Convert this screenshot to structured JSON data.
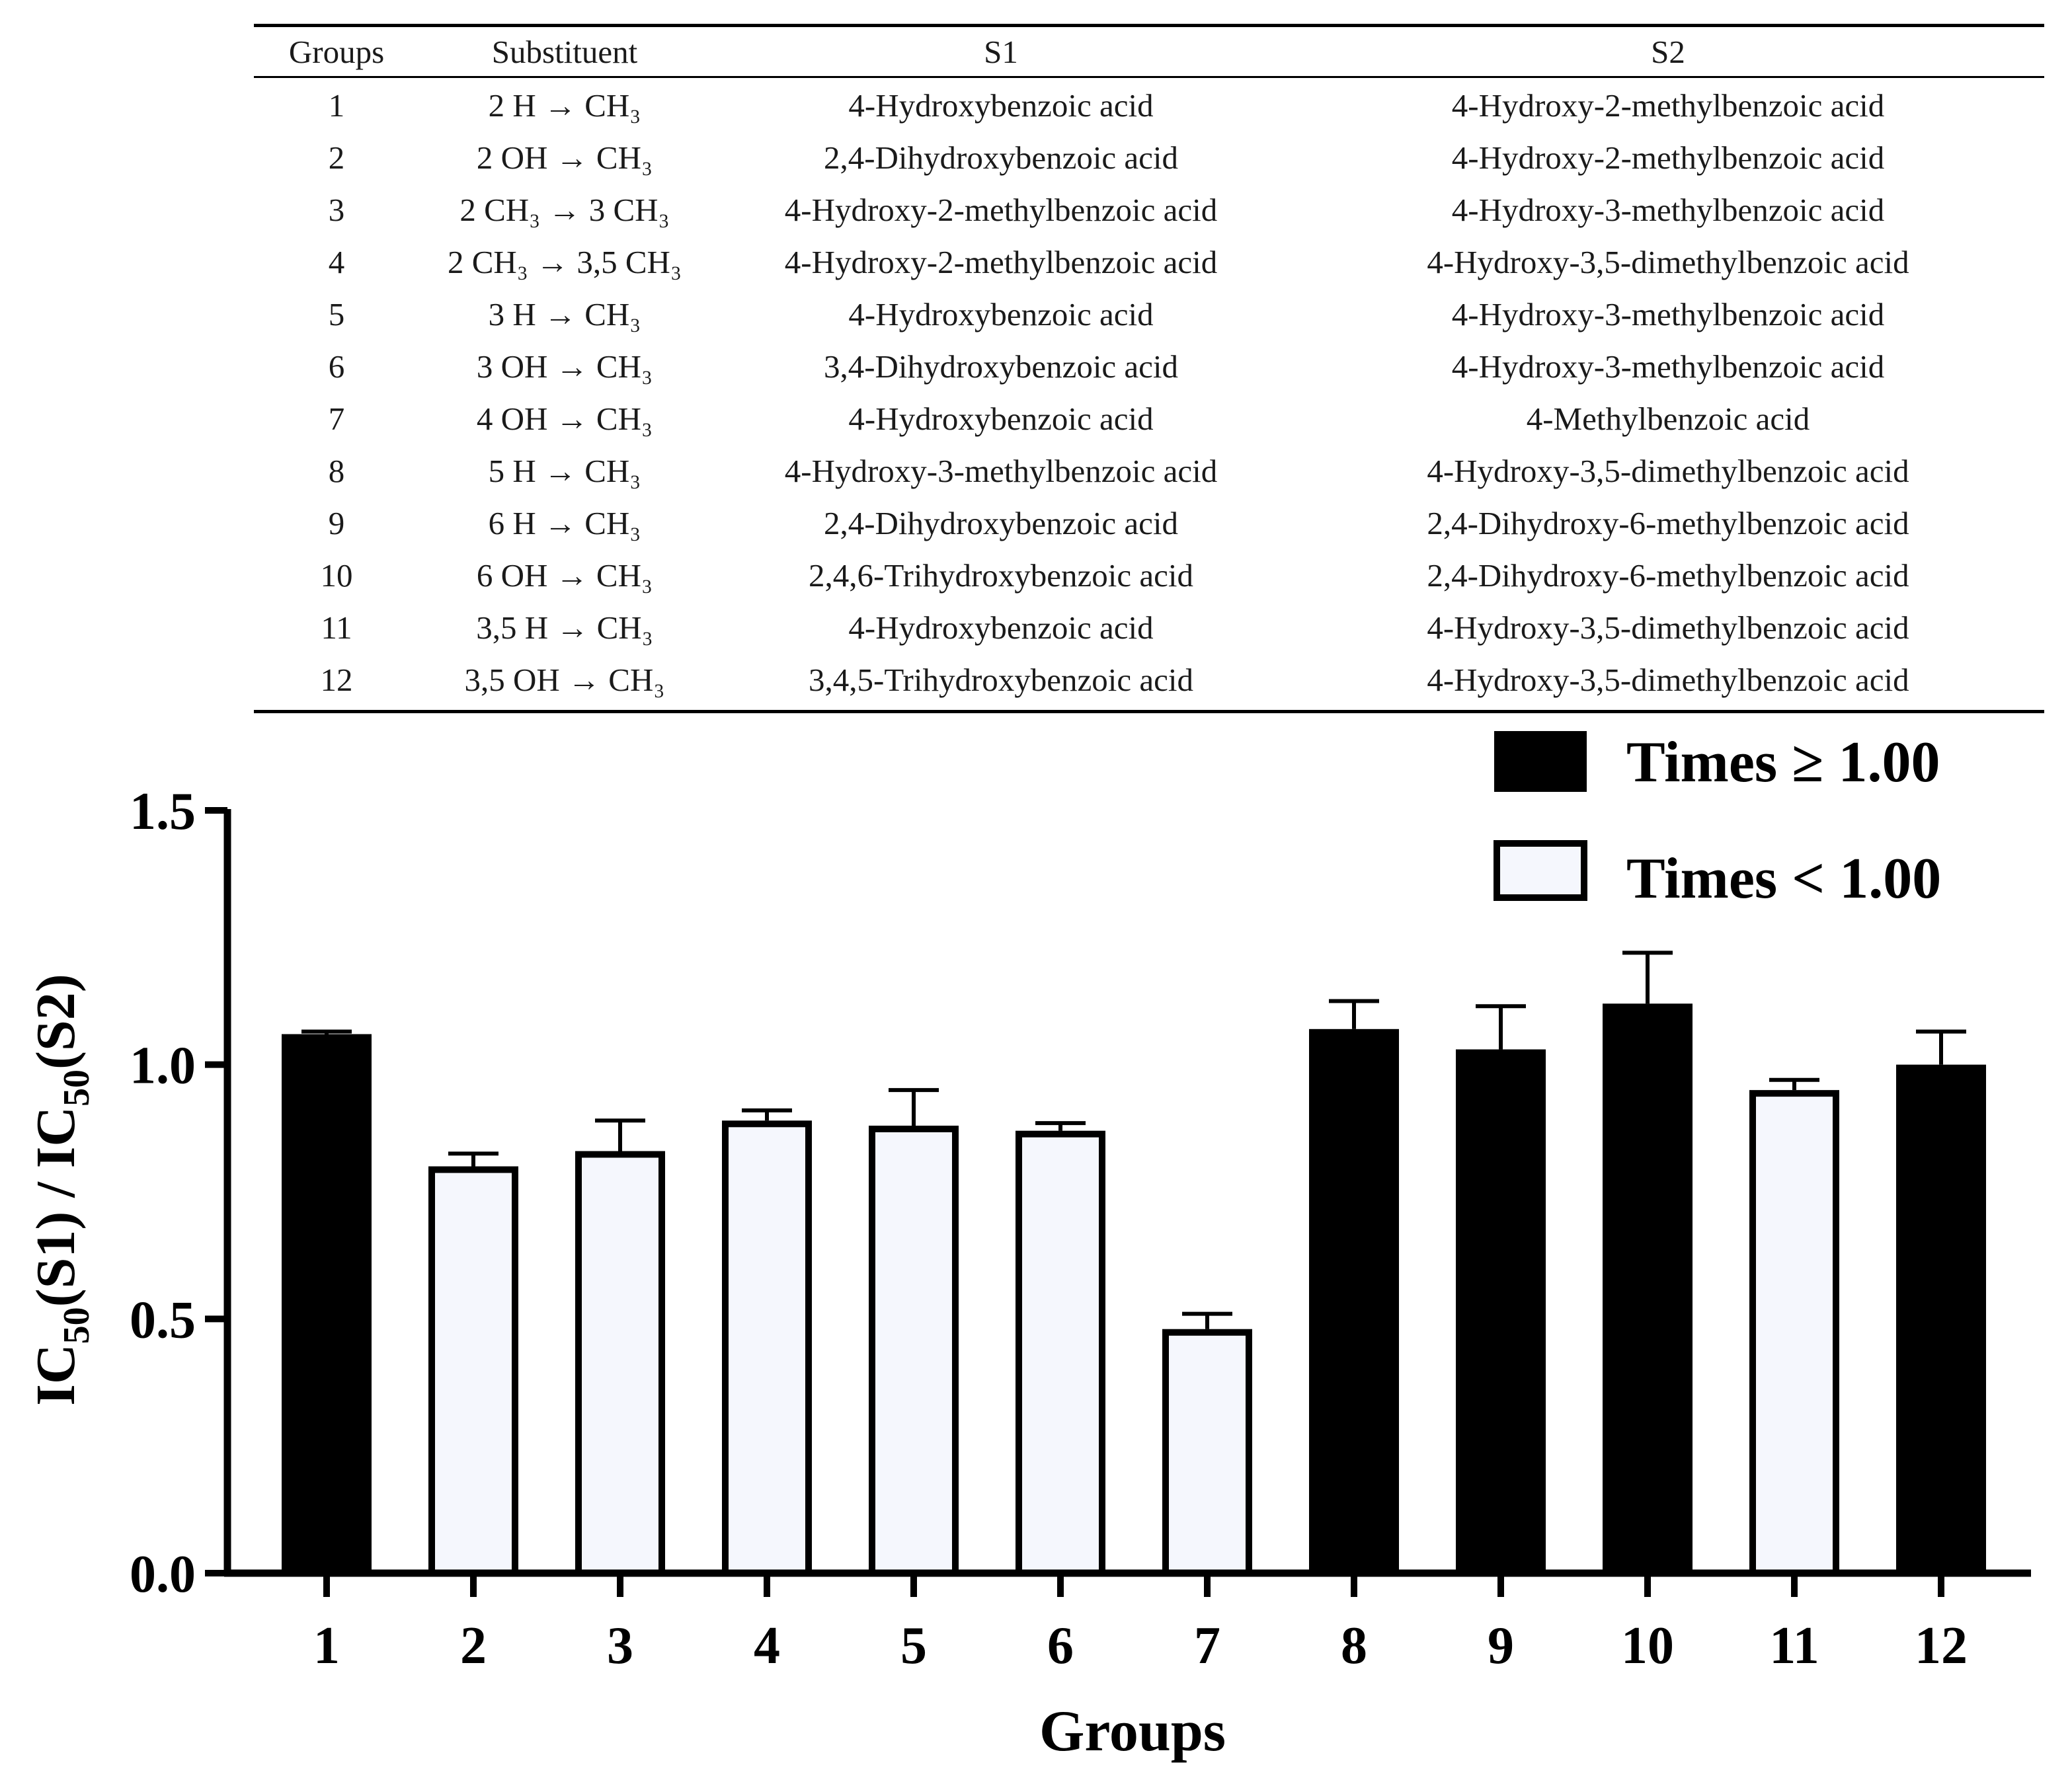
{
  "table": {
    "headers": [
      "Groups",
      "Substituent",
      "S1",
      "S2"
    ],
    "rows": [
      {
        "group": "1",
        "substituent": "2 H → CH₃",
        "s1": "4-Hydroxybenzoic acid",
        "s2": "4-Hydroxy-2-methylbenzoic acid"
      },
      {
        "group": "2",
        "substituent": "2 OH → CH₃",
        "s1": "2,4-Dihydroxybenzoic acid",
        "s2": "4-Hydroxy-2-methylbenzoic acid"
      },
      {
        "group": "3",
        "substituent": "2 CH₃ → 3 CH₃",
        "s1": "4-Hydroxy-2-methylbenzoic acid",
        "s2": "4-Hydroxy-3-methylbenzoic acid"
      },
      {
        "group": "4",
        "substituent": "2 CH₃ → 3,5 CH₃",
        "s1": "4-Hydroxy-2-methylbenzoic acid",
        "s2": "4-Hydroxy-3,5-dimethylbenzoic acid"
      },
      {
        "group": "5",
        "substituent": "3 H → CH₃",
        "s1": "4-Hydroxybenzoic acid",
        "s2": "4-Hydroxy-3-methylbenzoic acid"
      },
      {
        "group": "6",
        "substituent": "3 OH → CH₃",
        "s1": "3,4-Dihydroxybenzoic acid",
        "s2": "4-Hydroxy-3-methylbenzoic acid"
      },
      {
        "group": "7",
        "substituent": "4 OH → CH₃",
        "s1": "4-Hydroxybenzoic acid",
        "s2": "4-Methylbenzoic acid"
      },
      {
        "group": "8",
        "substituent": "5 H → CH₃",
        "s1": "4-Hydroxy-3-methylbenzoic acid",
        "s2": "4-Hydroxy-3,5-dimethylbenzoic acid"
      },
      {
        "group": "9",
        "substituent": "6 H → CH₃",
        "s1": "2,4-Dihydroxybenzoic acid",
        "s2": "2,4-Dihydroxy-6-methylbenzoic acid"
      },
      {
        "group": "10",
        "substituent": "6 OH → CH₃",
        "s1": "2,4,6-Trihydroxybenzoic acid",
        "s2": "2,4-Dihydroxy-6-methylbenzoic acid"
      },
      {
        "group": "11",
        "substituent": "3,5 H → CH₃",
        "s1": "4-Hydroxybenzoic acid",
        "s2": "4-Hydroxy-3,5-dimethylbenzoic acid"
      },
      {
        "group": "12",
        "substituent": "3,5 OH → CH₃",
        "s1": "3,4,5-Trihydroxybenzoic acid",
        "s2": "4-Hydroxy-3,5-dimethylbenzoic acid"
      }
    ]
  },
  "chart_data": {
    "type": "bar",
    "title": "",
    "xlabel": "Groups",
    "ylabel": "IC50(S1) / IC50(S2)",
    "ylabel_parts": {
      "a": "IC",
      "sub1": "50",
      "b": "(S1) / IC",
      "sub2": "50",
      "c": "(S2)"
    },
    "ylim": [
      0,
      1.5
    ],
    "yticks": [
      0.0,
      0.5,
      1.0,
      1.5
    ],
    "ytick_labels": [
      "0.0",
      "0.5",
      "1.0",
      "1.5"
    ],
    "categories": [
      "1",
      "2",
      "3",
      "4",
      "5",
      "6",
      "7",
      "8",
      "9",
      "10",
      "11",
      "12"
    ],
    "values": [
      1.06,
      0.8,
      0.83,
      0.89,
      0.88,
      0.87,
      0.48,
      1.07,
      1.03,
      1.12,
      0.95,
      1.0
    ],
    "errors": [
      0.005,
      0.025,
      0.06,
      0.02,
      0.07,
      0.015,
      0.03,
      0.055,
      0.085,
      0.1,
      0.02,
      0.065
    ],
    "categories_class": [
      "ge",
      "lt",
      "lt",
      "lt",
      "lt",
      "lt",
      "lt",
      "ge",
      "ge",
      "ge",
      "lt",
      "ge"
    ],
    "legend": [
      {
        "key": "ge",
        "label": "Times ≥ 1.00",
        "fill": "#000000"
      },
      {
        "key": "lt",
        "label": "Times < 1.00",
        "fill": "#f5f7fd"
      }
    ],
    "legend_position": "top-right",
    "colors": {
      "filled": "#000000",
      "open_fill": "#f5f7fd",
      "stroke": "#000000"
    }
  }
}
